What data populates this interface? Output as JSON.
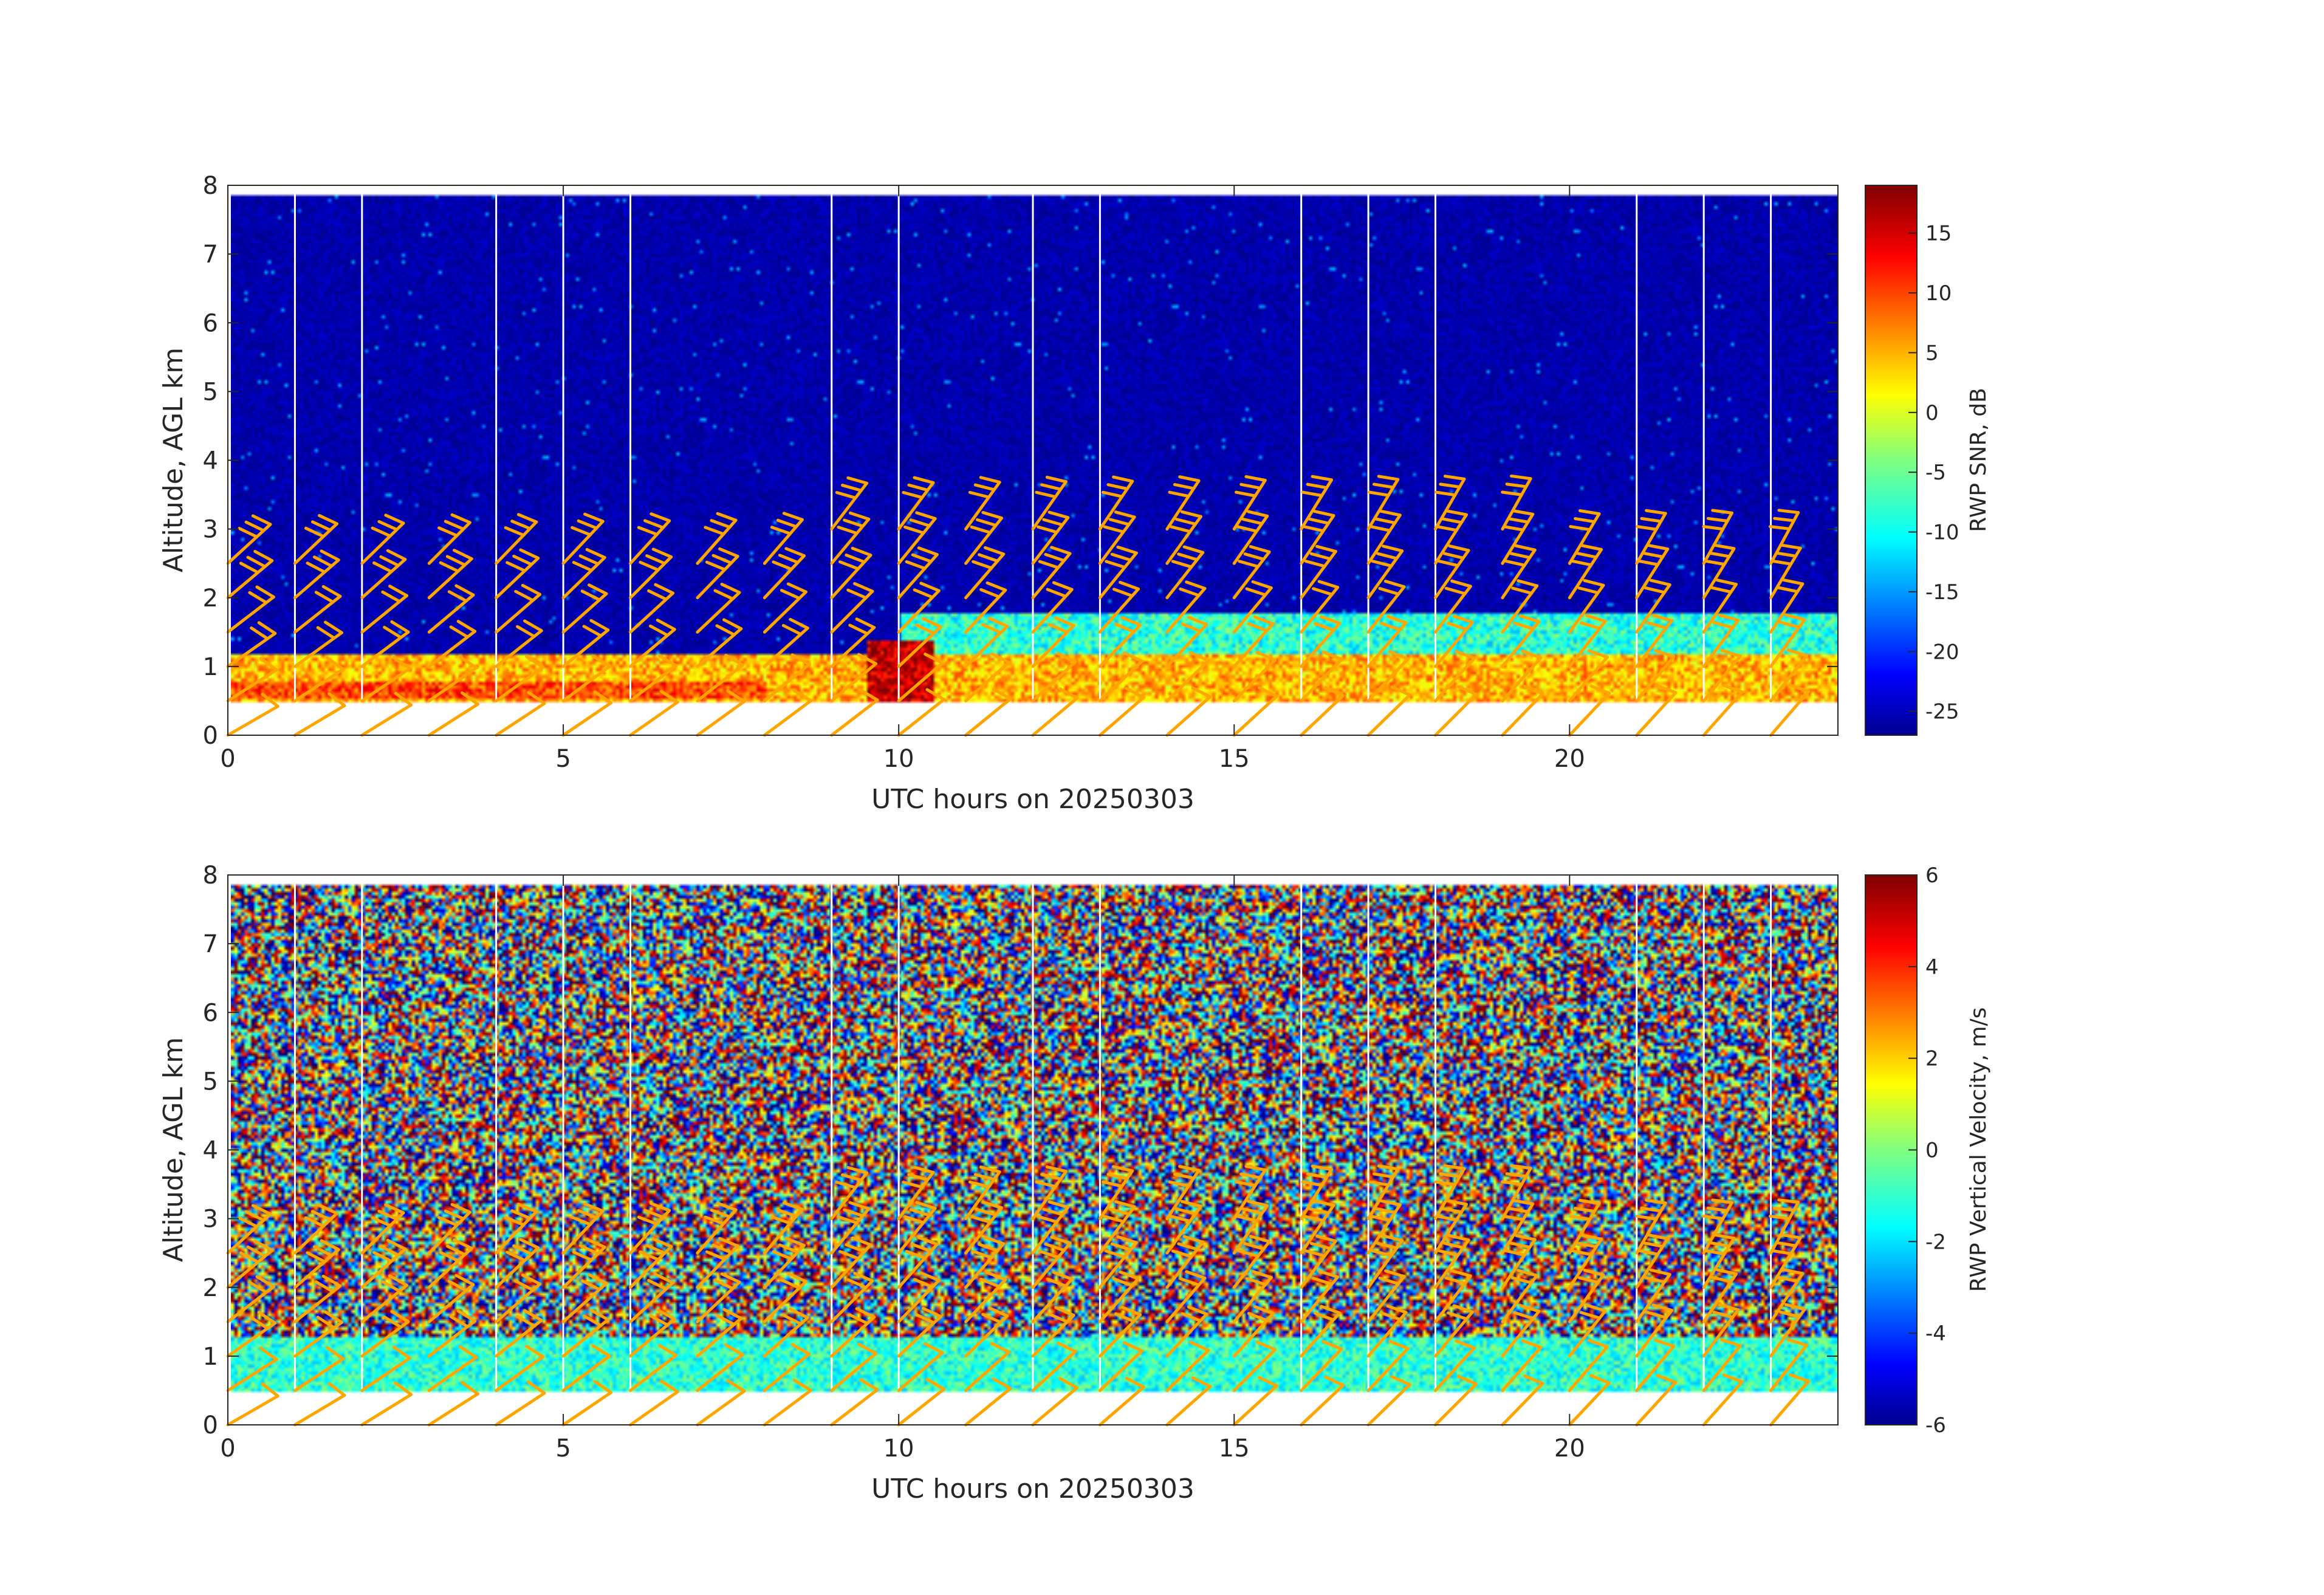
{
  "figure": {
    "background": "#ffffff"
  },
  "chart_data": [
    {
      "type": "heatmap",
      "panel": "top",
      "xlabel": "UTC hours on 20250303",
      "ylabel": "Altitude, AGL km",
      "xlim": [
        0,
        24
      ],
      "ylim": [
        0,
        8
      ],
      "xticks": [
        0,
        5,
        10,
        15,
        20
      ],
      "yticks": [
        0,
        1,
        2,
        3,
        4,
        5,
        6,
        7,
        8
      ],
      "colorbar": {
        "label": "RWP SNR, dB",
        "colormap": "jet",
        "clim": [
          -27,
          19
        ],
        "ticks": [
          15,
          10,
          5,
          0,
          -5,
          -10,
          -15,
          -20,
          -25
        ]
      },
      "data_altitude_range_km": [
        0.5,
        7.9
      ],
      "background_value": -25,
      "features": [
        {
          "description": "boundary layer band",
          "x_range": [
            0,
            24
          ],
          "y_range": [
            0.5,
            1.2
          ],
          "value": 5
        },
        {
          "description": "strong surface echo",
          "x_range": [
            0,
            8
          ],
          "y_range": [
            0.55,
            0.8
          ],
          "value": 10
        },
        {
          "description": "peak near 10 UTC",
          "x_range": [
            9.5,
            10.5
          ],
          "y_range": [
            0.5,
            1.4
          ],
          "value": 16
        },
        {
          "description": "elevated layer",
          "x_range": [
            10,
            24
          ],
          "y_range": [
            0.5,
            1.8
          ],
          "value": -8
        }
      ],
      "gap_times_hours": [
        1,
        2,
        4,
        5,
        6,
        9,
        10,
        12,
        13,
        16,
        17,
        18,
        21,
        22,
        23
      ],
      "wind_barbs": {
        "color": "#ffa500"
      }
    },
    {
      "type": "heatmap",
      "panel": "bottom",
      "xlabel": "UTC hours on 20250303",
      "ylabel": "Altitude, AGL km",
      "xlim": [
        0,
        24
      ],
      "ylim": [
        0,
        8
      ],
      "xticks": [
        0,
        5,
        10,
        15,
        20
      ],
      "yticks": [
        0,
        1,
        2,
        3,
        4,
        5,
        6,
        7,
        8
      ],
      "colorbar": {
        "label": "RWP Vertical Velocity, m/s",
        "colormap": "jet",
        "clim": [
          -6,
          6
        ],
        "ticks": [
          6,
          4,
          2,
          0,
          -2,
          -4,
          -6
        ]
      },
      "data_altitude_range_km": [
        0.5,
        7.9
      ],
      "features": [
        {
          "description": "noisy upper levels",
          "x_range": [
            0,
            24
          ],
          "y_range": [
            1.3,
            7.9
          ],
          "value_range": [
            -6,
            6
          ]
        },
        {
          "description": "boundary layer near zero",
          "x_range": [
            0,
            24
          ],
          "y_range": [
            0.5,
            1.3
          ],
          "value": -1
        }
      ],
      "gap_times_hours": [
        1,
        2,
        4,
        5,
        6,
        9,
        10,
        12,
        13,
        16,
        17,
        18,
        21,
        22,
        23
      ],
      "wind_barbs": {
        "color": "#ffa500"
      }
    }
  ]
}
